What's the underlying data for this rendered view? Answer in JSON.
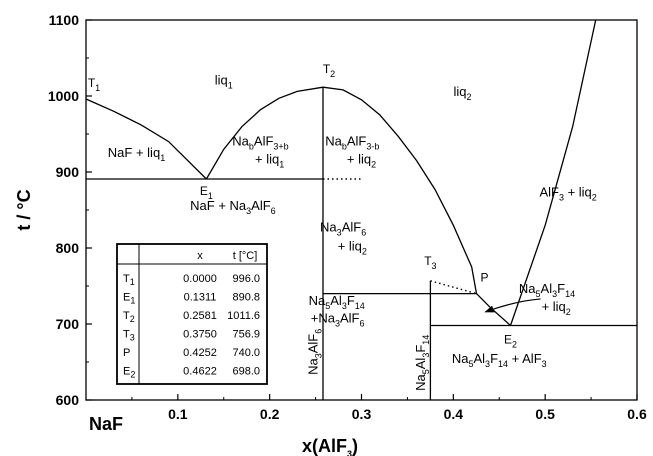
{
  "chart_data": {
    "type": "line",
    "xlabel": "x(AlF3)",
    "ylabel": "t / °C",
    "xlim": [
      0,
      0.6
    ],
    "ylim": [
      600,
      1100
    ],
    "x_ticks": [
      0.1,
      0.2,
      0.3,
      0.4,
      0.5,
      0.6
    ],
    "x_ticks_text": [
      "0.1",
      "0.2",
      "0.3",
      "0.4",
      "0.5",
      "0.6"
    ],
    "x_origin_label": "NaF",
    "y_ticks": [
      600,
      700,
      800,
      900,
      1000,
      1100
    ],
    "y_ticks_text": [
      "600",
      "700",
      "800",
      "900",
      "1000",
      "1100"
    ],
    "grid": false,
    "curves": [
      {
        "style": "solid",
        "points": [
          [
            0,
            996.0
          ],
          [
            0.03,
            980
          ],
          [
            0.06,
            962
          ],
          [
            0.09,
            940
          ],
          [
            0.1311,
            890.8
          ]
        ]
      },
      {
        "style": "solid",
        "points": [
          [
            0.1311,
            890.8
          ],
          [
            0.15,
            930
          ],
          [
            0.17,
            960
          ],
          [
            0.19,
            982
          ],
          [
            0.21,
            997
          ],
          [
            0.23,
            1006
          ],
          [
            0.2581,
            1011.6
          ]
        ]
      },
      {
        "style": "solid",
        "points": [
          [
            0.2581,
            1011.6
          ],
          [
            0.28,
            1008
          ],
          [
            0.3,
            995
          ],
          [
            0.32,
            975
          ],
          [
            0.34,
            947
          ],
          [
            0.36,
            915
          ],
          [
            0.38,
            877
          ],
          [
            0.4,
            830
          ],
          [
            0.42,
            775
          ],
          [
            0.4252,
            740.0
          ]
        ]
      },
      {
        "style": "solid",
        "points": [
          [
            0.4252,
            740.0
          ],
          [
            0.44,
            722
          ],
          [
            0.4622,
            698.0
          ]
        ]
      },
      {
        "style": "solid",
        "points": [
          [
            0.4622,
            698.0
          ],
          [
            0.5,
            830
          ],
          [
            0.53,
            960
          ],
          [
            0.555,
            1100
          ]
        ]
      },
      {
        "style": "solid",
        "points": [
          [
            0,
            890.8
          ],
          [
            0.2581,
            890.8
          ]
        ]
      },
      {
        "style": "dotted",
        "points": [
          [
            0.2581,
            890.8
          ],
          [
            0.3,
            890.8
          ]
        ]
      },
      {
        "style": "solid",
        "points": [
          [
            0.2581,
            600
          ],
          [
            0.2581,
            1011.6
          ]
        ]
      },
      {
        "style": "solid",
        "points": [
          [
            0.2581,
            740.0
          ],
          [
            0.4252,
            740.0
          ]
        ]
      },
      {
        "style": "dotted",
        "points": [
          [
            0.375,
            756.9
          ],
          [
            0.4252,
            740.0
          ]
        ]
      },
      {
        "style": "solid",
        "points": [
          [
            0.375,
            600
          ],
          [
            0.375,
            756.9
          ]
        ]
      },
      {
        "style": "solid",
        "points": [
          [
            0.375,
            698.0
          ],
          [
            0.6,
            698.0
          ]
        ]
      }
    ],
    "points": [
      {
        "label": "T",
        "sub": "1",
        "x": 0.0,
        "y": 996.0
      },
      {
        "label": "E",
        "sub": "1",
        "x": 0.1311,
        "y": 890.8
      },
      {
        "label": "T",
        "sub": "2",
        "x": 0.2581,
        "y": 1011.6
      },
      {
        "label": "T",
        "sub": "3",
        "x": 0.375,
        "y": 756.9
      },
      {
        "label": "P",
        "sub": "",
        "x": 0.4252,
        "y": 740.0
      },
      {
        "label": "E",
        "sub": "2",
        "x": 0.4622,
        "y": 698.0
      }
    ],
    "regions": [
      {
        "segments": [
          [
            "liq",
            ""
          ],
          [
            "1",
            "sub"
          ]
        ],
        "x": 0.15,
        "y": 1015
      },
      {
        "segments": [
          [
            "liq",
            ""
          ],
          [
            "2",
            "sub"
          ]
        ],
        "x": 0.41,
        "y": 1000
      },
      {
        "segments": [
          [
            "NaF + liq",
            ""
          ],
          [
            "1",
            "sub"
          ]
        ],
        "x": 0.055,
        "y": 920
      },
      {
        "segments": [
          [
            "Na",
            ""
          ],
          [
            "b",
            "sub"
          ],
          [
            "AlF",
            ""
          ],
          [
            "3+b",
            "sub"
          ]
        ],
        "x": 0.19,
        "y": 935
      },
      {
        "segments": [
          [
            "+ liq",
            ""
          ],
          [
            "1",
            "sub"
          ]
        ],
        "x": 0.2,
        "y": 911
      },
      {
        "segments": [
          [
            "Na",
            ""
          ],
          [
            "b",
            "sub"
          ],
          [
            "AlF",
            ""
          ],
          [
            "3-b",
            "sub"
          ]
        ],
        "x": 0.29,
        "y": 935
      },
      {
        "segments": [
          [
            "+ liq",
            ""
          ],
          [
            "2",
            "sub"
          ]
        ],
        "x": 0.3,
        "y": 911
      },
      {
        "segments": [
          [
            "NaF + Na",
            ""
          ],
          [
            "3",
            "sub"
          ],
          [
            "AlF",
            ""
          ],
          [
            "6",
            "sub"
          ]
        ],
        "x": 0.16,
        "y": 850
      },
      {
        "segments": [
          [
            "Na",
            ""
          ],
          [
            "3",
            "sub"
          ],
          [
            "AlF",
            ""
          ],
          [
            "6",
            "sub"
          ]
        ],
        "x": 0.28,
        "y": 822
      },
      {
        "segments": [
          [
            "+ liq",
            ""
          ],
          [
            "2",
            "sub"
          ]
        ],
        "x": 0.29,
        "y": 797
      },
      {
        "segments": [
          [
            "AlF",
            ""
          ],
          [
            "3",
            "sub"
          ],
          [
            " + liq",
            ""
          ],
          [
            "2",
            "sub"
          ]
        ],
        "x": 0.525,
        "y": 868
      },
      {
        "segments": [
          [
            "Na",
            ""
          ],
          [
            "5",
            "sub"
          ],
          [
            "Al",
            ""
          ],
          [
            "3",
            "sub"
          ],
          [
            "F",
            ""
          ],
          [
            "14",
            "sub"
          ]
        ],
        "x": 0.273,
        "y": 725
      },
      {
        "segments": [
          [
            "+Na",
            ""
          ],
          [
            "3",
            "sub"
          ],
          [
            "AlF",
            ""
          ],
          [
            "6",
            "sub"
          ]
        ],
        "x": 0.274,
        "y": 702
      },
      {
        "segments": [
          [
            "Na",
            ""
          ],
          [
            "5",
            "sub"
          ],
          [
            "Al",
            ""
          ],
          [
            "3",
            "sub"
          ],
          [
            "F",
            ""
          ],
          [
            "14",
            "sub"
          ]
        ],
        "x": 0.502,
        "y": 741
      },
      {
        "segments": [
          [
            "+ liq",
            ""
          ],
          [
            "2",
            "sub"
          ]
        ],
        "x": 0.512,
        "y": 717
      },
      {
        "segments": [
          [
            "Na",
            ""
          ],
          [
            "5",
            "sub"
          ],
          [
            "Al",
            ""
          ],
          [
            "3",
            "sub"
          ],
          [
            "F",
            ""
          ],
          [
            "14",
            "sub"
          ],
          [
            " + AlF",
            ""
          ],
          [
            "3",
            "sub"
          ]
        ],
        "x": 0.45,
        "y": 649
      }
    ],
    "vertical_labels": [
      {
        "segments": [
          [
            "Na",
            ""
          ],
          [
            "3",
            "sub"
          ],
          [
            "AlF",
            ""
          ],
          [
            "6",
            "sub"
          ]
        ],
        "x": 0.252,
        "y": 633
      },
      {
        "segments": [
          [
            "Na",
            ""
          ],
          [
            "5",
            "sub"
          ],
          [
            "Al",
            ""
          ],
          [
            "3",
            "sub"
          ],
          [
            "F",
            ""
          ],
          [
            "14",
            "sub"
          ]
        ],
        "x": 0.369,
        "y": 612
      }
    ],
    "arrow": {
      "from": [
        0.495,
        733
      ],
      "to": [
        0.435,
        716
      ]
    },
    "table": {
      "header": [
        "x",
        "t [°C]"
      ],
      "rows": [
        {
          "name": "T",
          "sub": "1",
          "x": "0.0000",
          "t": "996.0"
        },
        {
          "name": "E",
          "sub": "1",
          "x": "0.1311",
          "t": "890.8"
        },
        {
          "name": "T",
          "sub": "2",
          "x": "0.2581",
          "t": "1011.6"
        },
        {
          "name": "T",
          "sub": "3",
          "x": "0.3750",
          "t": "756.9"
        },
        {
          "name": "P",
          "sub": "",
          "x": "0.4252",
          "t": "740.0"
        },
        {
          "name": "E",
          "sub": "2",
          "x": "0.4622",
          "t": "698.0"
        }
      ]
    }
  }
}
